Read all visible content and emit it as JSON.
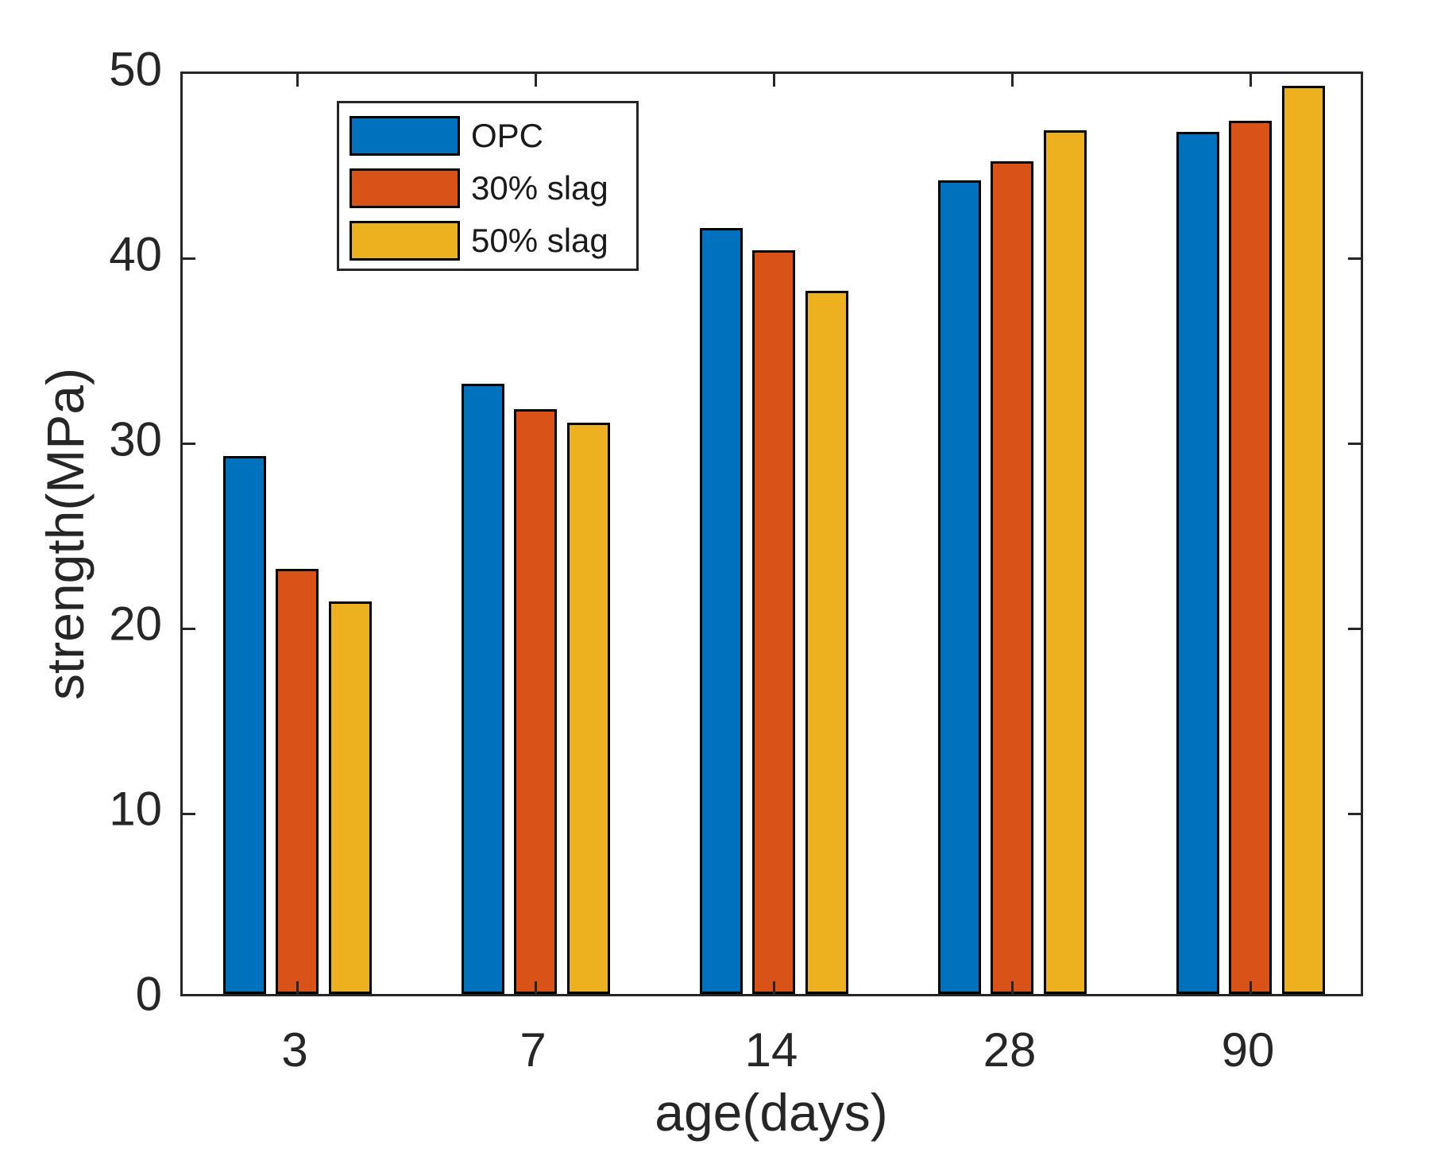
{
  "chart_data": {
    "type": "bar",
    "title": "",
    "xlabel": "age(days)",
    "ylabel": "strength(MPa)",
    "categories": [
      "3",
      "7",
      "14",
      "28",
      "90"
    ],
    "series": [
      {
        "name": "OPC",
        "color": "#0072BD",
        "values": [
          29.1,
          33.0,
          41.4,
          44.0,
          46.6
        ]
      },
      {
        "name": "30% slag",
        "color": "#D95319",
        "values": [
          23.0,
          31.6,
          40.2,
          45.0,
          47.2
        ]
      },
      {
        "name": "50% slag",
        "color": "#EDB120",
        "values": [
          21.2,
          30.9,
          38.0,
          46.7,
          49.1
        ]
      }
    ],
    "ylim": [
      0,
      50
    ],
    "yticks": [
      0,
      10,
      20,
      30,
      40,
      50
    ],
    "grid": false,
    "legend": {
      "position": "top-left-inside",
      "entries": [
        "OPC",
        "30% slag",
        "50% slag"
      ]
    },
    "colors": {
      "axis": "#262626",
      "bar_edge": "#000000",
      "background": "#ffffff"
    }
  }
}
